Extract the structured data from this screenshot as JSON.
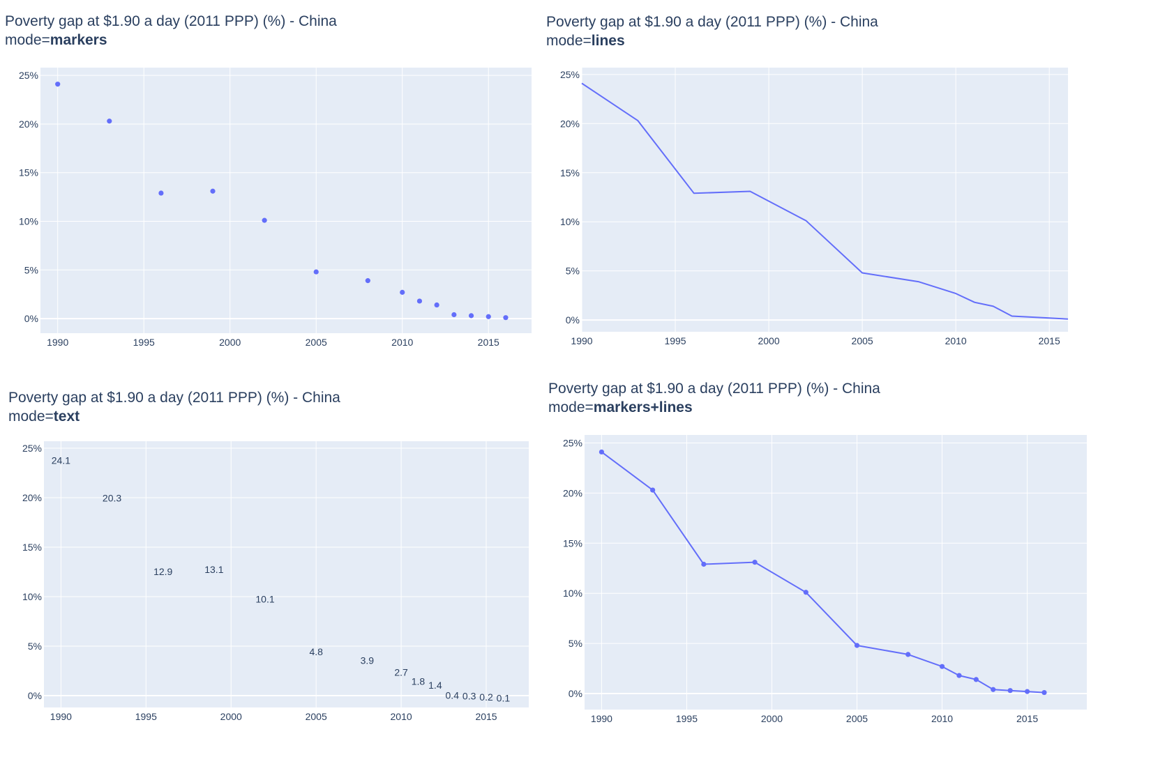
{
  "colors": {
    "plot_bg": "#e5ecf6",
    "grid": "#ffffff",
    "trace": "#636efa",
    "text": "#2a3f5f"
  },
  "chart_data": [
    {
      "type": "scatter",
      "mode": "markers",
      "title": "Poverty gap at $1.90 a day (2011 PPP) (%) - China",
      "subtitle_prefix": "mode=",
      "subtitle_mode": "markers",
      "x": [
        1990,
        1993,
        1996,
        1999,
        2002,
        2005,
        2008,
        2010,
        2011,
        2012,
        2013,
        2014,
        2015,
        2016
      ],
      "y": [
        24.1,
        20.3,
        12.9,
        13.1,
        10.1,
        4.8,
        3.9,
        2.7,
        1.8,
        1.4,
        0.4,
        0.3,
        0.2,
        0.1
      ],
      "xlim": [
        1989,
        2017.5
      ],
      "ylim": [
        -1.5,
        25.8
      ],
      "xticks": [
        1990,
        1995,
        2000,
        2005,
        2010,
        2015
      ],
      "yticks": [
        0,
        5,
        10,
        15,
        20,
        25
      ],
      "ytick_suffix": "%",
      "grid": true
    },
    {
      "type": "line",
      "mode": "lines",
      "title": "Poverty gap at $1.90 a day (2011 PPP) (%) - China",
      "subtitle_prefix": "mode=",
      "subtitle_mode": "lines",
      "x": [
        1990,
        1993,
        1996,
        1999,
        2002,
        2005,
        2008,
        2010,
        2011,
        2012,
        2013,
        2014,
        2015,
        2016
      ],
      "y": [
        24.1,
        20.3,
        12.9,
        13.1,
        10.1,
        4.8,
        3.9,
        2.7,
        1.8,
        1.4,
        0.4,
        0.3,
        0.2,
        0.1
      ],
      "xlim": [
        1990,
        2016
      ],
      "ylim": [
        -1.2,
        25.7
      ],
      "xticks": [
        1990,
        1995,
        2000,
        2005,
        2010,
        2015
      ],
      "yticks": [
        0,
        5,
        10,
        15,
        20,
        25
      ],
      "ytick_suffix": "%",
      "grid": true
    },
    {
      "type": "scatter",
      "mode": "text",
      "title": "Poverty gap at $1.90 a day (2011 PPP) (%) - China",
      "subtitle_prefix": "mode=",
      "subtitle_mode": "text",
      "x": [
        1990,
        1993,
        1996,
        1999,
        2002,
        2005,
        2008,
        2010,
        2011,
        2012,
        2013,
        2014,
        2015,
        2016
      ],
      "y": [
        24.1,
        20.3,
        12.9,
        13.1,
        10.1,
        4.8,
        3.9,
        2.7,
        1.8,
        1.4,
        0.4,
        0.3,
        0.2,
        0.1
      ],
      "labels": [
        "24.1",
        "20.3",
        "12.9",
        "13.1",
        "10.1",
        "4.8",
        "3.9",
        "2.7",
        "1.8",
        "1.4",
        "0.4",
        "0.3",
        "0.2",
        "0.1"
      ],
      "xlim": [
        1989,
        2017.5
      ],
      "ylim": [
        -1.2,
        25.7
      ],
      "xticks": [
        1990,
        1995,
        2000,
        2005,
        2010,
        2015
      ],
      "yticks": [
        0,
        5,
        10,
        15,
        20,
        25
      ],
      "ytick_suffix": "%",
      "grid": true
    },
    {
      "type": "line",
      "mode": "markers+lines",
      "title": "Poverty gap at $1.90 a day (2011 PPP) (%) - China",
      "subtitle_prefix": "mode=",
      "subtitle_mode": "markers+lines",
      "x": [
        1990,
        1993,
        1996,
        1999,
        2002,
        2005,
        2008,
        2010,
        2011,
        2012,
        2013,
        2014,
        2015,
        2016
      ],
      "y": [
        24.1,
        20.3,
        12.9,
        13.1,
        10.1,
        4.8,
        3.9,
        2.7,
        1.8,
        1.4,
        0.4,
        0.3,
        0.2,
        0.1
      ],
      "xlim": [
        1989,
        2018.5
      ],
      "ylim": [
        -1.6,
        25.8
      ],
      "xticks": [
        1990,
        1995,
        2000,
        2005,
        2010,
        2015
      ],
      "yticks": [
        0,
        5,
        10,
        15,
        20,
        25
      ],
      "ytick_suffix": "%",
      "grid": true
    }
  ]
}
